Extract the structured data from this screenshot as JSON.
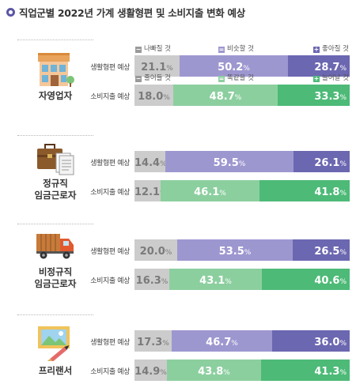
{
  "title": "직업군별 2022년 가계 생활형편 및 소비지출 변화 예상",
  "colors": {
    "bad": "#cccccc",
    "same_living": "#9d97d0",
    "good_living": "#6c67b1",
    "same_spend": "#8ccf9f",
    "more_spend": "#4dba77",
    "title_dot": "#5b56a6"
  },
  "legends": {
    "living": [
      {
        "label": "나빠질 것",
        "sign": "−"
      },
      {
        "label": "비슷할 것",
        "sign": "="
      },
      {
        "label": "좋아질 것",
        "sign": "+"
      }
    ],
    "spend": [
      {
        "label": "줄어들 것",
        "sign": "−"
      },
      {
        "label": "똑같을 것",
        "sign": "="
      },
      {
        "label": "늘어날 것",
        "sign": "+"
      }
    ]
  },
  "chart_data": {
    "type": "bar",
    "stacked": true,
    "orientation": "horizontal",
    "unit": "%",
    "groups": [
      {
        "occupation": [
          "자영업자"
        ],
        "icon": "shop-icon",
        "rows": [
          {
            "label": "생활형편 예상",
            "kind": "living",
            "values": [
              21.1,
              50.2,
              28.7
            ]
          },
          {
            "label": "소비지출 예상",
            "kind": "spend",
            "values": [
              18.0,
              48.7,
              33.3
            ]
          }
        ]
      },
      {
        "occupation": [
          "정규직",
          "임금근로자"
        ],
        "icon": "briefcase-icon",
        "rows": [
          {
            "label": "생활형편 예상",
            "kind": "living",
            "values": [
              14.4,
              59.5,
              26.1
            ]
          },
          {
            "label": "소비지출 예상",
            "kind": "spend",
            "values": [
              12.1,
              46.1,
              41.8
            ]
          }
        ]
      },
      {
        "occupation": [
          "비정규직",
          "임금근로자"
        ],
        "icon": "truck-icon",
        "rows": [
          {
            "label": "생활형편 예상",
            "kind": "living",
            "values": [
              20.0,
              53.5,
              26.5
            ]
          },
          {
            "label": "소비지출 예상",
            "kind": "spend",
            "values": [
              16.3,
              43.1,
              40.6
            ]
          }
        ]
      },
      {
        "occupation": [
          "프리랜서"
        ],
        "icon": "painting-icon",
        "rows": [
          {
            "label": "생활형편 예상",
            "kind": "living",
            "values": [
              17.3,
              46.7,
              36.0
            ]
          },
          {
            "label": "소비지출 예상",
            "kind": "spend",
            "values": [
              14.9,
              43.8,
              41.3
            ]
          }
        ]
      }
    ]
  }
}
